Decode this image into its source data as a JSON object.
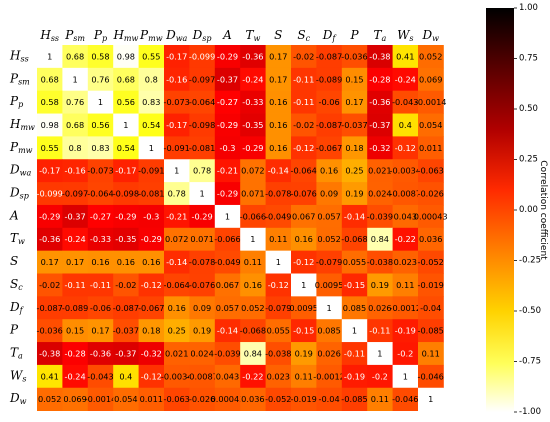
{
  "chart_data": {
    "type": "heatmap",
    "variables": [
      {
        "base": "H",
        "sub": "ss"
      },
      {
        "base": "P",
        "sub": "sm"
      },
      {
        "base": "P",
        "sub": "p"
      },
      {
        "base": "H",
        "sub": "mw"
      },
      {
        "base": "P",
        "sub": "mw"
      },
      {
        "base": "D",
        "sub": "wa"
      },
      {
        "base": "D",
        "sub": "sp"
      },
      {
        "base": "A",
        "sub": ""
      },
      {
        "base": "T",
        "sub": "w"
      },
      {
        "base": "S",
        "sub": ""
      },
      {
        "base": "S",
        "sub": "c"
      },
      {
        "base": "D",
        "sub": "f"
      },
      {
        "base": "P",
        "sub": ""
      },
      {
        "base": "T",
        "sub": "a"
      },
      {
        "base": "W",
        "sub": "s"
      },
      {
        "base": "D",
        "sub": "w"
      }
    ],
    "cell_labels": [
      [
        "1",
        "0.68",
        "0.58",
        "0.98",
        "0.55",
        "-0.17",
        "-0.099",
        "-0.29",
        "-0.36",
        "0.17",
        "-0.02",
        "-0.087",
        "-0.036",
        "-0.38",
        "0.41",
        "0.052"
      ],
      [
        "0.68",
        "1",
        "0.76",
        "0.68",
        "0.8",
        "-0.16",
        "-0.097",
        "-0.37",
        "-0.24",
        "0.17",
        "-0.11",
        "-0.089",
        "0.15",
        "-0.28",
        "-0.24",
        "0.069"
      ],
      [
        "0.58",
        "0.76",
        "1",
        "0.56",
        "0.83",
        "-0.073",
        "-0.064",
        "-0.27",
        "-0.33",
        "0.16",
        "-0.11",
        "-0.06",
        "0.17",
        "-0.36",
        "-0.043",
        "-0.0014"
      ],
      [
        "0.98",
        "0.68",
        "0.56",
        "1",
        "0.54",
        "-0.17",
        "-0.098",
        "-0.29",
        "-0.35",
        "0.16",
        "-0.02",
        "-0.087",
        "-0.037",
        "-0.37",
        "0.4",
        "0.054"
      ],
      [
        "0.55",
        "0.8",
        "0.83",
        "0.54",
        "1",
        "-0.091",
        "-0.081",
        "-0.3",
        "-0.29",
        "0.16",
        "-0.12",
        "-0.067",
        "0.18",
        "-0.32",
        "-0.12",
        "0.011"
      ],
      [
        "-0.17",
        "-0.16",
        "-0.073",
        "-0.17",
        "-0.091",
        "1",
        "0.78",
        "-0.21",
        "0.072",
        "-0.14",
        "-0.064",
        "0.16",
        "0.25",
        "0.021",
        "-0.0034",
        "-0.063"
      ],
      [
        "-0.099",
        "-0.097",
        "-0.064",
        "-0.098",
        "-0.081",
        "0.78",
        "1",
        "-0.29",
        "0.071",
        "-0.078",
        "-0.076",
        "0.09",
        "0.19",
        "0.024",
        "-0.0087",
        "-0.026"
      ],
      [
        "-0.29",
        "-0.37",
        "-0.27",
        "-0.29",
        "-0.3",
        "-0.21",
        "-0.29",
        "1",
        "-0.066",
        "-0.049",
        "0.067",
        "0.057",
        "-0.14",
        "-0.039",
        "0.043",
        "0.00043"
      ],
      [
        "-0.36",
        "-0.24",
        "-0.33",
        "-0.35",
        "-0.29",
        "0.072",
        "0.071",
        "-0.066",
        "1",
        "0.11",
        "0.16",
        "0.052",
        "-0.068",
        "0.84",
        "-0.22",
        "0.036"
      ],
      [
        "0.17",
        "0.17",
        "0.16",
        "0.16",
        "0.16",
        "-0.14",
        "-0.078",
        "-0.049",
        "0.11",
        "1",
        "-0.12",
        "-0.079",
        "0.055",
        "-0.038",
        "0.023",
        "-0.052"
      ],
      [
        "-0.02",
        "-0.11",
        "-0.11",
        "-0.02",
        "-0.12",
        "-0.064",
        "-0.076",
        "0.067",
        "0.16",
        "-0.12",
        "1",
        "0.0095",
        "-0.15",
        "0.19",
        "0.11",
        "-0.019"
      ],
      [
        "-0.087",
        "-0.089",
        "-0.06",
        "-0.087",
        "-0.067",
        "0.16",
        "0.09",
        "0.057",
        "0.052",
        "-0.079",
        "0.0095",
        "1",
        "0.085",
        "0.026",
        "-0.0012",
        "-0.04"
      ],
      [
        "-0.036",
        "0.15",
        "0.17",
        "-0.037",
        "0.18",
        "0.25",
        "0.19",
        "-0.14",
        "-0.068",
        "0.055",
        "-0.15",
        "0.085",
        "1",
        "-0.11",
        "-0.19",
        "-0.085"
      ],
      [
        "-0.38",
        "-0.28",
        "-0.36",
        "-0.37",
        "-0.32",
        "0.021",
        "0.024",
        "-0.039",
        "0.84",
        "-0.038",
        "0.19",
        "0.026",
        "-0.11",
        "1",
        "-0.2",
        "0.11"
      ],
      [
        "0.41",
        "-0.24",
        "-0.043",
        "0.4",
        "-0.12",
        "-0.0034",
        "-0.0087",
        "0.043",
        "-0.22",
        "0.023",
        "0.11",
        "-0.0012",
        "-0.19",
        "-0.2",
        "1",
        "-0.046"
      ],
      [
        "0.052",
        "0.069",
        "-0.0014",
        "0.054",
        "0.011",
        "-0.063",
        "-0.026",
        "0.00043",
        "0.036",
        "-0.052",
        "-0.019",
        "-0.04",
        "-0.085",
        "0.11",
        "-0.046",
        "1"
      ]
    ],
    "vmin": -1,
    "vmax": 1,
    "colormap": "hot_r",
    "colorbar": {
      "label": "Correlation coefficient",
      "ticks": [
        "1.00",
        "0.75",
        "0.50",
        "0.25",
        "0.00",
        "-0.25",
        "-0.50",
        "-0.75",
        "-1.00"
      ]
    },
    "grid": false,
    "legend": "colorbar-right"
  }
}
